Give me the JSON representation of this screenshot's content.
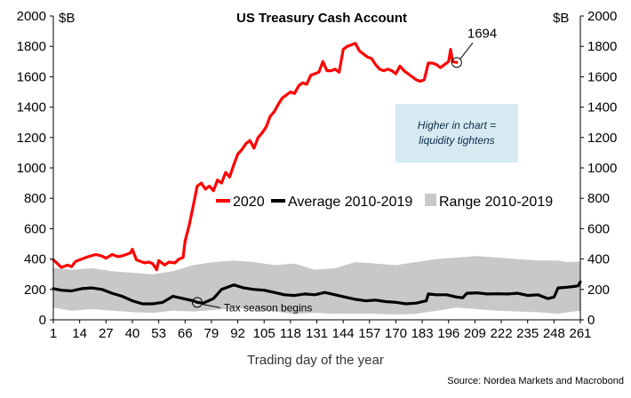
{
  "chart_data": {
    "type": "line",
    "title": "US Treasury Cash Account",
    "xlabel": "Trading day of the year",
    "ylabel_left": "$B",
    "ylabel_right": "$B",
    "source": "Source: Nordea Markets and Macrobond",
    "ylim": [
      0,
      2000
    ],
    "xlim": [
      1,
      261
    ],
    "y_ticks": [
      0,
      200,
      400,
      600,
      800,
      1000,
      1200,
      1400,
      1600,
      1800,
      2000
    ],
    "x_ticks": [
      1,
      14,
      27,
      40,
      53,
      66,
      79,
      92,
      105,
      118,
      131,
      144,
      157,
      170,
      183,
      196,
      209,
      222,
      235,
      248,
      261
    ],
    "legend_position": "center-right",
    "colors": {
      "y2020": "#ff0000",
      "average": "#000000",
      "range": "#c8c8c8",
      "note_box": "#d6eaf1"
    },
    "legend": [
      {
        "label": "2020",
        "swatch": "line"
      },
      {
        "label": "Average 2010-2019",
        "swatch": "line"
      },
      {
        "label": "Range 2010-2019",
        "swatch": "box"
      }
    ],
    "annotations": {
      "last_value_label": "1694",
      "last_value_point": [
        200,
        1694
      ],
      "tax_label": "Tax season begins",
      "tax_point": [
        72,
        115
      ],
      "note": [
        "Higher in chart =",
        "liquidity tightens"
      ]
    },
    "series": [
      {
        "name": "2020",
        "points": [
          [
            1,
            395
          ],
          [
            3,
            370
          ],
          [
            5,
            345
          ],
          [
            8,
            360
          ],
          [
            10,
            350
          ],
          [
            12,
            385
          ],
          [
            15,
            400
          ],
          [
            18,
            415
          ],
          [
            22,
            430
          ],
          [
            25,
            420
          ],
          [
            27,
            405
          ],
          [
            30,
            430
          ],
          [
            33,
            415
          ],
          [
            36,
            425
          ],
          [
            39,
            440
          ],
          [
            40,
            465
          ],
          [
            42,
            395
          ],
          [
            44,
            385
          ],
          [
            46,
            375
          ],
          [
            48,
            380
          ],
          [
            50,
            370
          ],
          [
            52,
            330
          ],
          [
            53,
            390
          ],
          [
            56,
            360
          ],
          [
            58,
            380
          ],
          [
            61,
            375
          ],
          [
            63,
            400
          ],
          [
            65,
            410
          ],
          [
            66,
            520
          ],
          [
            68,
            620
          ],
          [
            70,
            750
          ],
          [
            72,
            880
          ],
          [
            74,
            900
          ],
          [
            76,
            860
          ],
          [
            78,
            880
          ],
          [
            80,
            850
          ],
          [
            82,
            920
          ],
          [
            84,
            900
          ],
          [
            86,
            970
          ],
          [
            88,
            940
          ],
          [
            90,
            1020
          ],
          [
            92,
            1090
          ],
          [
            94,
            1120
          ],
          [
            96,
            1160
          ],
          [
            98,
            1180
          ],
          [
            100,
            1130
          ],
          [
            102,
            1200
          ],
          [
            104,
            1230
          ],
          [
            106,
            1270
          ],
          [
            108,
            1340
          ],
          [
            110,
            1370
          ],
          [
            112,
            1420
          ],
          [
            114,
            1460
          ],
          [
            116,
            1480
          ],
          [
            118,
            1500
          ],
          [
            120,
            1490
          ],
          [
            122,
            1540
          ],
          [
            124,
            1560
          ],
          [
            126,
            1550
          ],
          [
            128,
            1610
          ],
          [
            130,
            1620
          ],
          [
            132,
            1630
          ],
          [
            134,
            1700
          ],
          [
            136,
            1640
          ],
          [
            138,
            1640
          ],
          [
            140,
            1650
          ],
          [
            142,
            1630
          ],
          [
            144,
            1780
          ],
          [
            146,
            1800
          ],
          [
            148,
            1810
          ],
          [
            150,
            1820
          ],
          [
            152,
            1770
          ],
          [
            154,
            1750
          ],
          [
            156,
            1730
          ],
          [
            158,
            1720
          ],
          [
            160,
            1680
          ],
          [
            162,
            1650
          ],
          [
            164,
            1640
          ],
          [
            166,
            1650
          ],
          [
            168,
            1640
          ],
          [
            170,
            1620
          ],
          [
            172,
            1670
          ],
          [
            174,
            1640
          ],
          [
            176,
            1620
          ],
          [
            178,
            1600
          ],
          [
            180,
            1580
          ],
          [
            182,
            1570
          ],
          [
            184,
            1580
          ],
          [
            186,
            1690
          ],
          [
            188,
            1690
          ],
          [
            190,
            1680
          ],
          [
            192,
            1660
          ],
          [
            194,
            1680
          ],
          [
            196,
            1700
          ],
          [
            197,
            1780
          ],
          [
            198,
            1700
          ],
          [
            200,
            1694
          ]
        ]
      },
      {
        "name": "Average 2010-2019",
        "points": [
          [
            1,
            205
          ],
          [
            5,
            195
          ],
          [
            10,
            190
          ],
          [
            15,
            205
          ],
          [
            20,
            210
          ],
          [
            25,
            200
          ],
          [
            30,
            175
          ],
          [
            35,
            155
          ],
          [
            40,
            125
          ],
          [
            45,
            105
          ],
          [
            50,
            105
          ],
          [
            55,
            115
          ],
          [
            60,
            155
          ],
          [
            65,
            140
          ],
          [
            70,
            125
          ],
          [
            72,
            115
          ],
          [
            75,
            110
          ],
          [
            80,
            140
          ],
          [
            84,
            200
          ],
          [
            88,
            220
          ],
          [
            90,
            230
          ],
          [
            95,
            210
          ],
          [
            100,
            200
          ],
          [
            105,
            195
          ],
          [
            110,
            180
          ],
          [
            115,
            165
          ],
          [
            120,
            160
          ],
          [
            125,
            170
          ],
          [
            130,
            165
          ],
          [
            135,
            180
          ],
          [
            140,
            165
          ],
          [
            145,
            150
          ],
          [
            150,
            135
          ],
          [
            155,
            125
          ],
          [
            160,
            130
          ],
          [
            165,
            120
          ],
          [
            170,
            115
          ],
          [
            175,
            105
          ],
          [
            180,
            110
          ],
          [
            185,
            125
          ],
          [
            186,
            170
          ],
          [
            190,
            165
          ],
          [
            195,
            165
          ],
          [
            200,
            150
          ],
          [
            203,
            145
          ],
          [
            205,
            175
          ],
          [
            210,
            178
          ],
          [
            215,
            170
          ],
          [
            220,
            172
          ],
          [
            225,
            170
          ],
          [
            230,
            175
          ],
          [
            235,
            160
          ],
          [
            240,
            165
          ],
          [
            245,
            140
          ],
          [
            248,
            150
          ],
          [
            250,
            210
          ],
          [
            255,
            215
          ],
          [
            258,
            220
          ],
          [
            260,
            225
          ],
          [
            261,
            250
          ]
        ]
      }
    ],
    "range_band": {
      "name": "Range 2010-2019",
      "x": [
        1,
        10,
        20,
        30,
        40,
        50,
        60,
        70,
        80,
        90,
        100,
        110,
        120,
        130,
        140,
        150,
        160,
        170,
        180,
        190,
        200,
        210,
        220,
        230,
        240,
        250,
        255,
        261
      ],
      "upper": [
        340,
        330,
        340,
        320,
        310,
        300,
        320,
        360,
        380,
        390,
        380,
        360,
        370,
        330,
        340,
        380,
        370,
        360,
        380,
        400,
        410,
        420,
        410,
        400,
        390,
        390,
        380,
        385
      ],
      "lower": [
        80,
        60,
        70,
        60,
        50,
        45,
        60,
        55,
        65,
        75,
        70,
        55,
        40,
        45,
        40,
        40,
        40,
        35,
        40,
        60,
        80,
        70,
        60,
        55,
        50,
        40,
        50,
        60
      ]
    }
  }
}
